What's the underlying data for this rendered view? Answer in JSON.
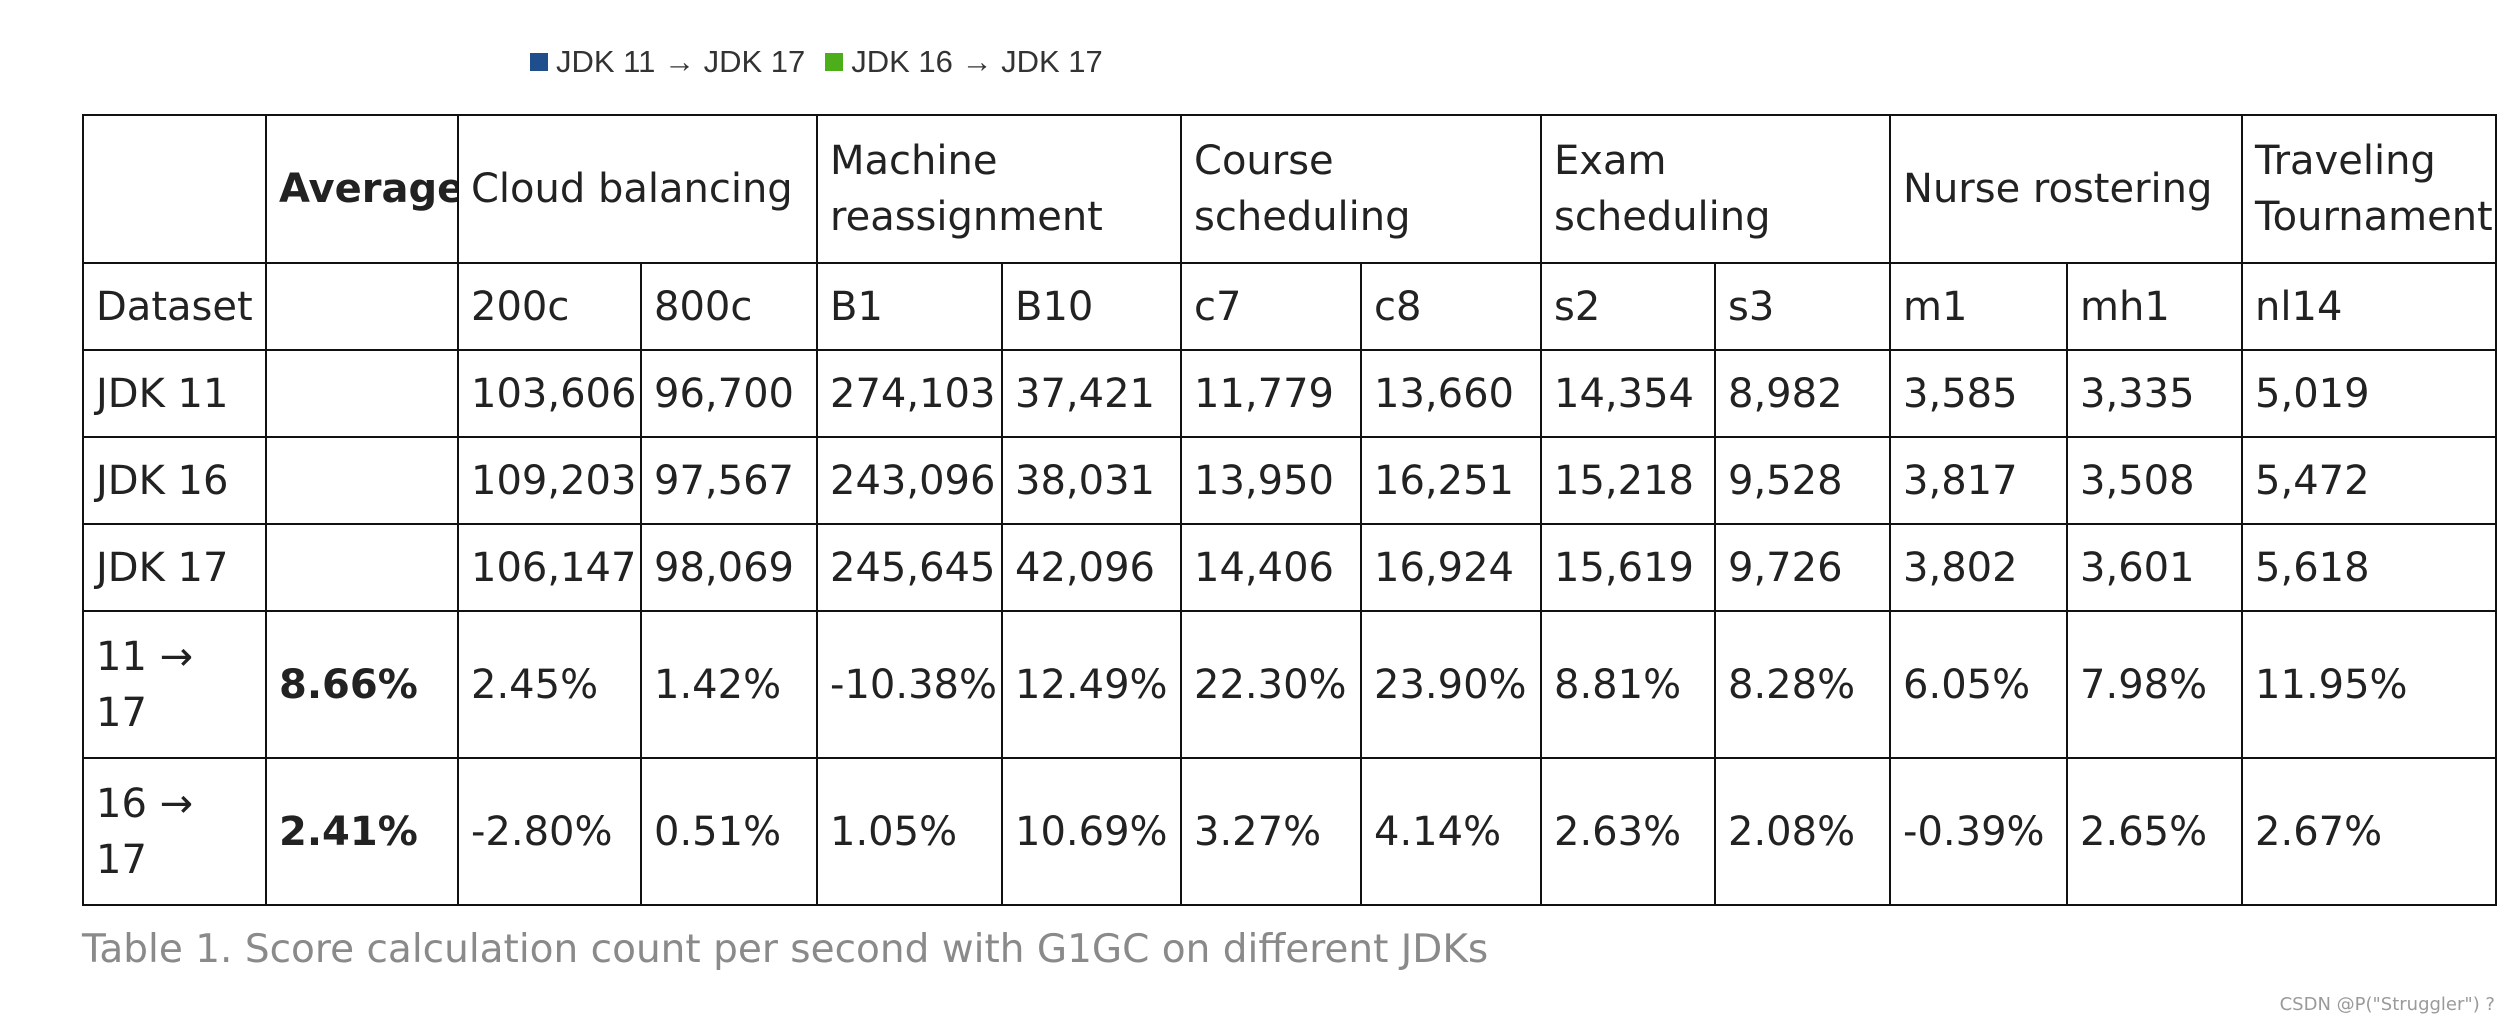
{
  "legend": {
    "items": [
      {
        "label": "JDK 11 → JDK 17",
        "color": "#1f4e8c"
      },
      {
        "label": "JDK 16 → JDK 17",
        "color": "#4caf1a"
      }
    ]
  },
  "table": {
    "header": {
      "corner": "",
      "average": "Average",
      "groups": [
        "Cloud balancing",
        "Machine reassignment",
        "Course scheduling",
        "Exam scheduling",
        "Nurse rostering",
        "Traveling Tournament"
      ]
    },
    "datasets": {
      "label": "Dataset",
      "average": "",
      "values": [
        "200c",
        "800c",
        "B1",
        "B10",
        "c7",
        "c8",
        "s2",
        "s3",
        "m1",
        "mh1",
        "nl14"
      ]
    },
    "rows": [
      {
        "label": "JDK 11",
        "average": "",
        "values": [
          "103,606",
          "96,700",
          "274,103",
          "37,421",
          "11,779",
          "13,660",
          "14,354",
          "8,982",
          "3,585",
          "3,335",
          "5,019"
        ]
      },
      {
        "label": "JDK 16",
        "average": "",
        "values": [
          "109,203",
          "97,567",
          "243,096",
          "38,031",
          "13,950",
          "16,251",
          "15,218",
          "9,528",
          "3,817",
          "3,508",
          "5,472"
        ]
      },
      {
        "label": "JDK 17",
        "average": "",
        "values": [
          "106,147",
          "98,069",
          "245,645",
          "42,096",
          "14,406",
          "16,924",
          "15,619",
          "9,726",
          "3,802",
          "3,601",
          "5,618"
        ]
      }
    ],
    "improvements": [
      {
        "label": "11 → 17",
        "average": "8.66%",
        "values": [
          "2.45%",
          "1.42%",
          "-10.38%",
          "12.49%",
          "22.30%",
          "23.90%",
          "8.81%",
          "8.28%",
          "6.05%",
          "7.98%",
          "11.95%"
        ]
      },
      {
        "label": "16 → 17",
        "average": "2.41%",
        "values": [
          "-2.80%",
          "0.51%",
          "1.05%",
          "10.69%",
          "3.27%",
          "4.14%",
          "2.63%",
          "2.08%",
          "-0.39%",
          "2.65%",
          "2.67%"
        ]
      }
    ]
  },
  "caption": "Table 1. Score calculation count per second with G1GC on different JDKs",
  "watermark": "CSDN @P(\"Struggler\") ?"
}
